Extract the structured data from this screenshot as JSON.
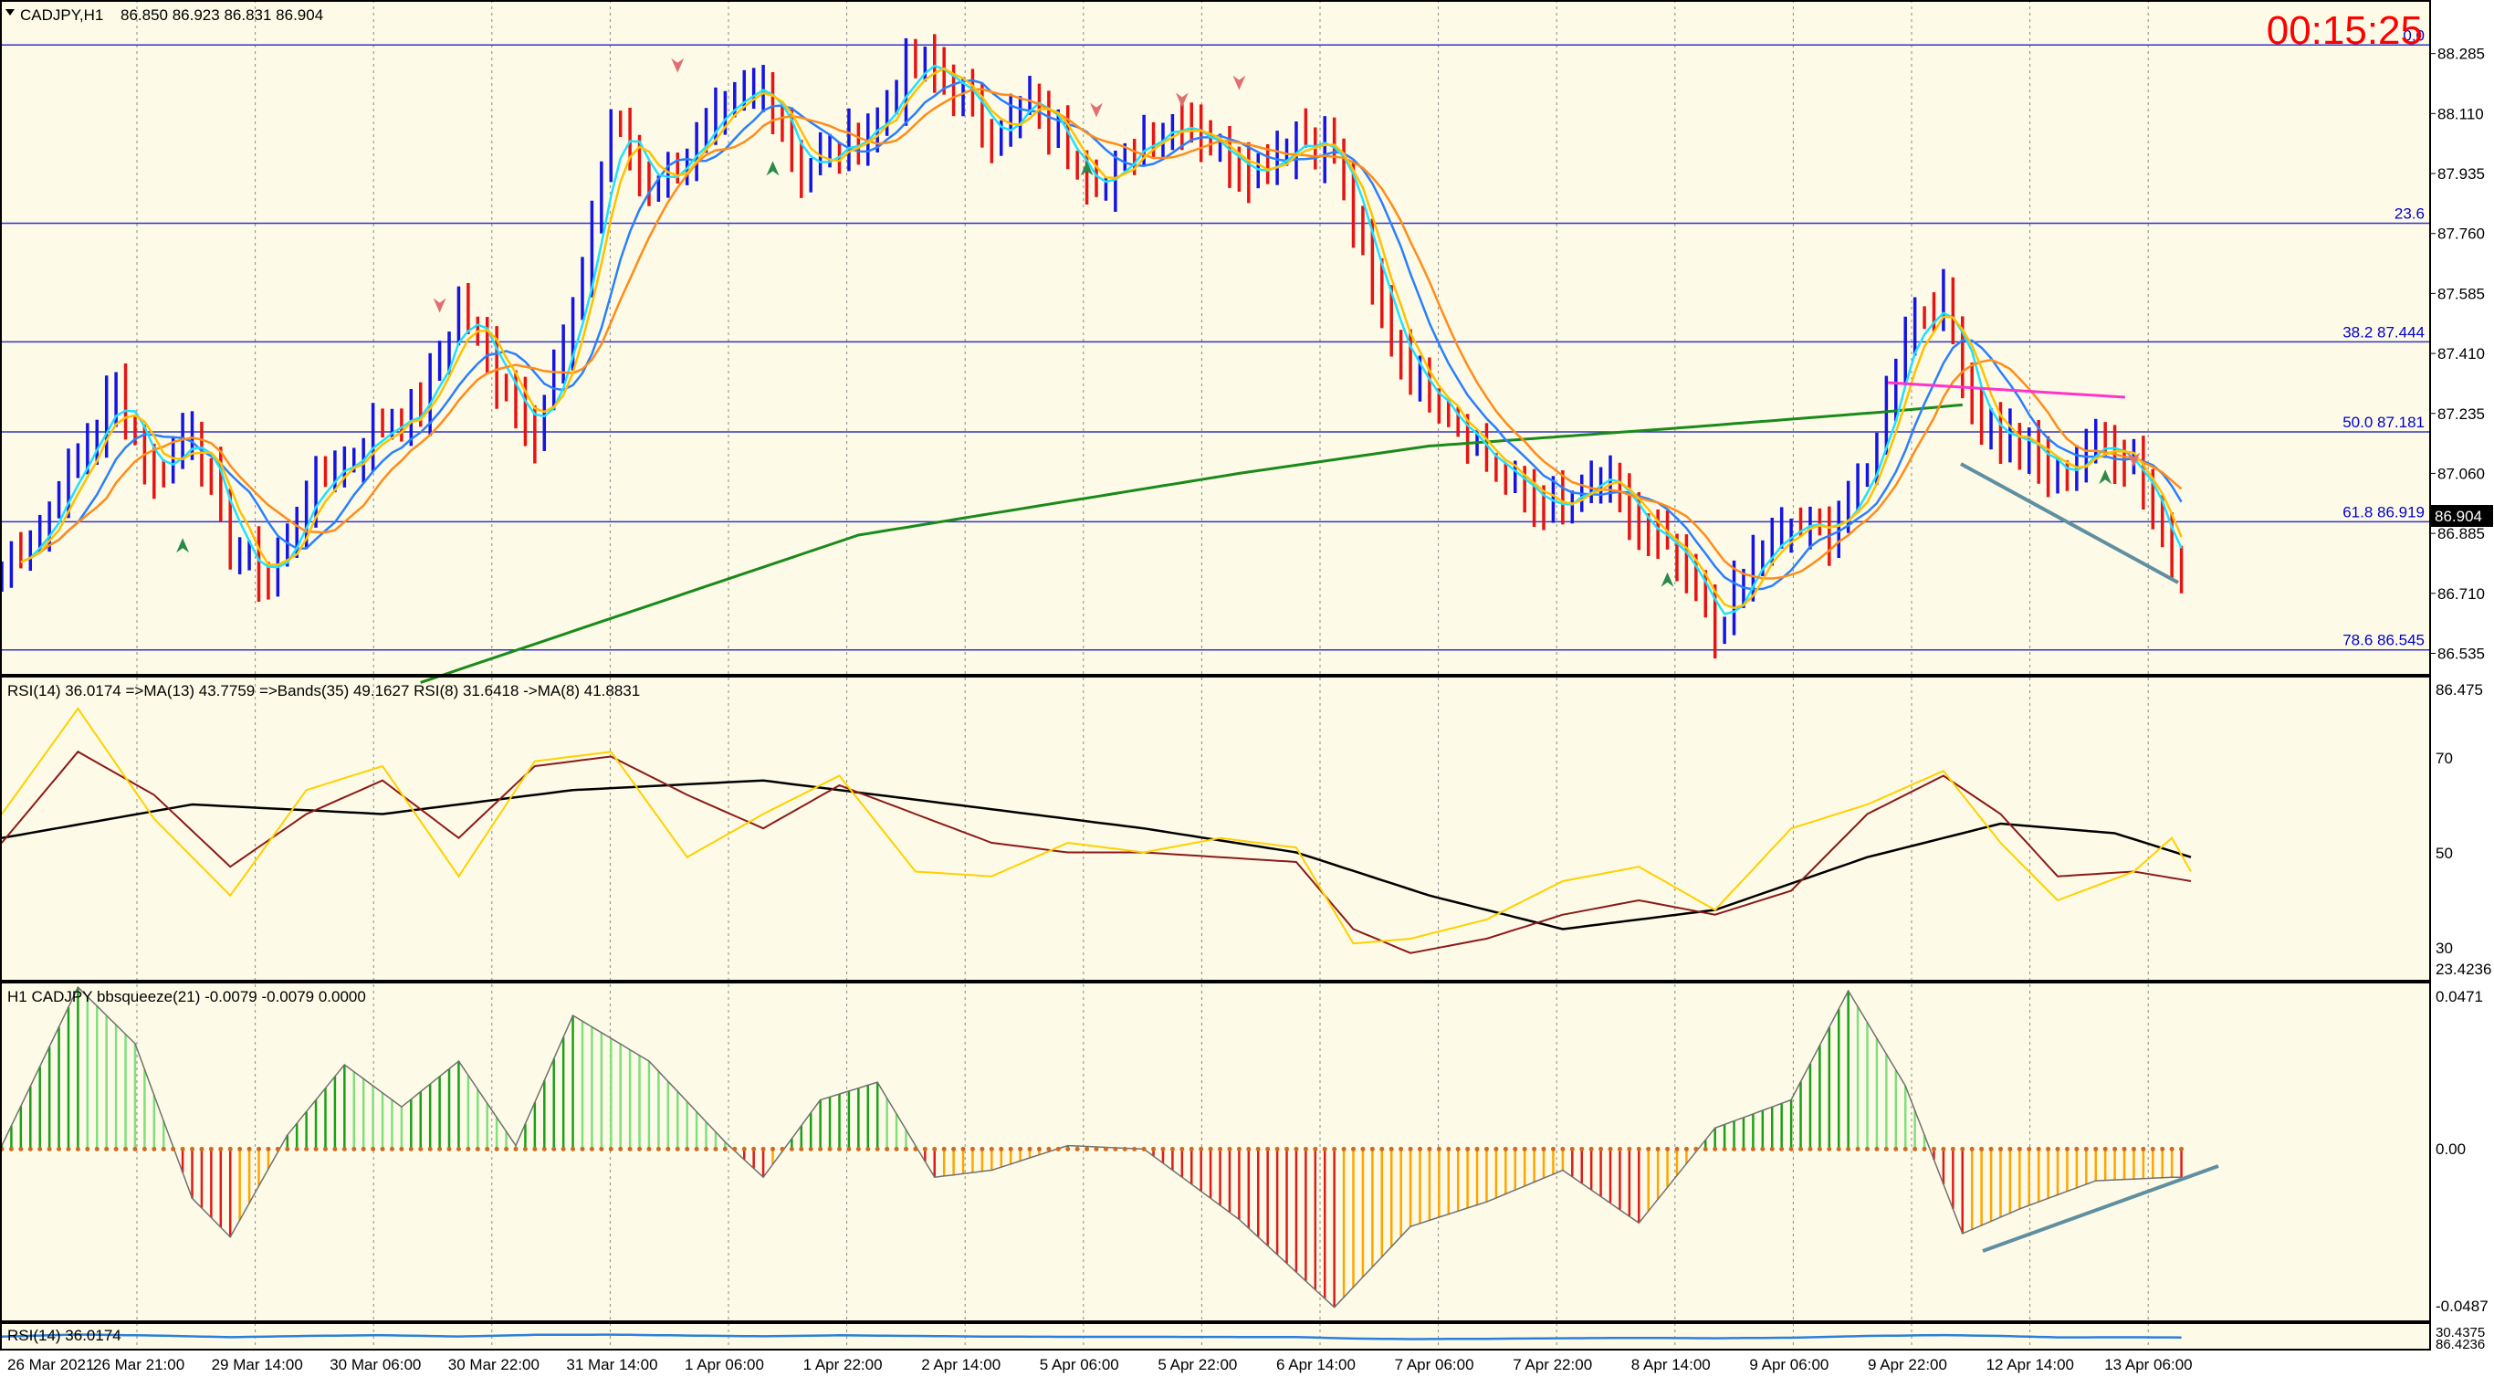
{
  "colors": {
    "background": "#fdfbe7",
    "bull_bar": "#1414e6",
    "bear_bar": "#e61414",
    "ma_fast": "#1ee0ff",
    "ma_slow": "#2a7fff",
    "ma_orange": "#ff8c1a",
    "ma_yellow": "#ffc000",
    "ma_long": "#1a8a1a",
    "pivot_line": "#ff33cc",
    "fib_line": "#3333cc",
    "trend_line": "#5f8fa0",
    "rsi_fast": "#ffd000",
    "rsi_slow": "#8b1a1a",
    "rsi_bands": "#000000",
    "squeeze_up": "#1aa01a",
    "squeeze_up_light": "#7fe07f",
    "squeeze_down": "#e01a1a",
    "squeeze_down_light": "#ffa500",
    "rsi_small": "#2a7fdd",
    "timer": "#ff0000"
  },
  "header": {
    "menu_icon": "triangle-down-icon",
    "symbol": "CADJPY,H1",
    "ohlc": "86.850 86.923 86.831 86.904"
  },
  "timer": "00:15:25",
  "price_axis": {
    "ticks": [
      "88.285",
      "88.110",
      "87.935",
      "87.760",
      "87.585",
      "87.410",
      "87.235",
      "87.060",
      "86.885",
      "86.710",
      "86.535"
    ],
    "current": "86.904"
  },
  "fib_levels": [
    {
      "label": "0.0",
      "price": 88.31
    },
    {
      "label": "23.6",
      "price": 87.79
    },
    {
      "label": "38.2  87.444",
      "price": 87.444
    },
    {
      "label": "50.0  87.181",
      "price": 87.181
    },
    {
      "label": "61.8  86.919",
      "price": 86.919
    },
    {
      "label": "78.6  86.545",
      "price": 86.545
    }
  ],
  "rsi_panel": {
    "header": "RSI(14) 36.0174  =>MA(13) 43.7759  =>Bands(35) 49.1627  RSI(8) 31.6418  ->MA(8) 41.8831",
    "axis_ticks": [
      "86.475",
      "70",
      "50",
      "30",
      "23.4236"
    ]
  },
  "squeeze_panel": {
    "header": "H1 CADJPY bbsqueeze(21) -0.0079 -0.0079 0.0000",
    "axis_ticks": [
      "0.0471",
      "0.00",
      "-0.0487"
    ]
  },
  "small_rsi_panel": {
    "header": "RSI(14) 36.0174",
    "axis_ticks": [
      "30.4375",
      "86.4236"
    ]
  },
  "time_axis": [
    "26 Mar 2021",
    "26 Mar 21:00",
    "29 Mar 14:00",
    "30 Mar 06:00",
    "30 Mar 22:00",
    "31 Mar 14:00",
    "1 Apr 06:00",
    "1 Apr 22:00",
    "2 Apr 14:00",
    "5 Apr 06:00",
    "5 Apr 22:00",
    "6 Apr 14:00",
    "7 Apr 06:00",
    "7 Apr 22:00",
    "8 Apr 14:00",
    "9 Apr 06:00",
    "9 Apr 22:00",
    "12 Apr 14:00",
    "13 Apr 06:00"
  ],
  "chart_data": {
    "type": "candlestick",
    "price_range": [
      86.475,
      88.42
    ],
    "price_series": [
      [
        0,
        86.78
      ],
      [
        4,
        86.9
      ],
      [
        8,
        87.1
      ],
      [
        12,
        87.3
      ],
      [
        16,
        87.05
      ],
      [
        20,
        87.2
      ],
      [
        24,
        86.85
      ],
      [
        28,
        86.75
      ],
      [
        32,
        87.0
      ],
      [
        36,
        87.1
      ],
      [
        40,
        87.2
      ],
      [
        44,
        87.25
      ],
      [
        48,
        87.55
      ],
      [
        52,
        87.35
      ],
      [
        56,
        87.2
      ],
      [
        60,
        87.5
      ],
      [
        64,
        88.1
      ],
      [
        68,
        87.9
      ],
      [
        72,
        88.0
      ],
      [
        76,
        88.1
      ],
      [
        80,
        88.2
      ],
      [
        84,
        87.95
      ],
      [
        88,
        88.0
      ],
      [
        92,
        88.1
      ],
      [
        96,
        88.25
      ],
      [
        100,
        88.2
      ],
      [
        104,
        88.05
      ],
      [
        108,
        88.15
      ],
      [
        112,
        88.0
      ],
      [
        116,
        87.9
      ],
      [
        120,
        88.05
      ],
      [
        124,
        88.1
      ],
      [
        128,
        88.0
      ],
      [
        132,
        87.95
      ],
      [
        136,
        88.05
      ],
      [
        140,
        88.0
      ],
      [
        144,
        87.6
      ],
      [
        148,
        87.35
      ],
      [
        152,
        87.25
      ],
      [
        156,
        87.1
      ],
      [
        160,
        87.0
      ],
      [
        164,
        86.95
      ],
      [
        168,
        87.05
      ],
      [
        172,
        86.9
      ],
      [
        176,
        86.8
      ],
      [
        180,
        86.6
      ],
      [
        184,
        86.8
      ],
      [
        188,
        86.9
      ],
      [
        192,
        86.9
      ],
      [
        196,
        87.05
      ],
      [
        200,
        87.5
      ],
      [
        204,
        87.55
      ],
      [
        208,
        87.2
      ],
      [
        212,
        87.15
      ],
      [
        216,
        87.05
      ],
      [
        220,
        87.15
      ],
      [
        224,
        87.1
      ],
      [
        228,
        86.8
      ]
    ],
    "bars_total": 230,
    "ma_long_series": [
      [
        44,
        86.45
      ],
      [
        90,
        86.88
      ],
      [
        130,
        87.06
      ],
      [
        150,
        87.14
      ],
      [
        175,
        87.19
      ],
      [
        198,
        87.24
      ],
      [
        206,
        87.26
      ]
    ],
    "rsi_range": [
      23.4236,
      86.475
    ],
    "rsi14_series": [
      [
        0,
        52
      ],
      [
        8,
        71
      ],
      [
        16,
        62
      ],
      [
        24,
        47
      ],
      [
        32,
        58
      ],
      [
        40,
        65
      ],
      [
        48,
        53
      ],
      [
        56,
        68
      ],
      [
        64,
        70
      ],
      [
        72,
        62
      ],
      [
        80,
        55
      ],
      [
        88,
        64
      ],
      [
        96,
        58
      ],
      [
        104,
        52
      ],
      [
        112,
        50
      ],
      [
        120,
        50
      ],
      [
        128,
        49
      ],
      [
        136,
        48
      ],
      [
        142,
        34
      ],
      [
        148,
        29
      ],
      [
        156,
        32
      ],
      [
        164,
        37
      ],
      [
        172,
        40
      ],
      [
        180,
        37
      ],
      [
        188,
        42
      ],
      [
        196,
        58
      ],
      [
        204,
        66
      ],
      [
        210,
        58
      ],
      [
        216,
        45
      ],
      [
        224,
        46
      ],
      [
        230,
        44
      ]
    ],
    "rsi8_series": [
      [
        0,
        58
      ],
      [
        8,
        80
      ],
      [
        16,
        57
      ],
      [
        24,
        41
      ],
      [
        32,
        63
      ],
      [
        40,
        68
      ],
      [
        48,
        45
      ],
      [
        56,
        69
      ],
      [
        64,
        71
      ],
      [
        72,
        49
      ],
      [
        80,
        58
      ],
      [
        88,
        66
      ],
      [
        96,
        46
      ],
      [
        104,
        45
      ],
      [
        112,
        52
      ],
      [
        120,
        50
      ],
      [
        128,
        53
      ],
      [
        136,
        51
      ],
      [
        142,
        31
      ],
      [
        148,
        32
      ],
      [
        156,
        36
      ],
      [
        164,
        44
      ],
      [
        172,
        47
      ],
      [
        180,
        38
      ],
      [
        188,
        55
      ],
      [
        196,
        60
      ],
      [
        204,
        67
      ],
      [
        210,
        52
      ],
      [
        216,
        40
      ],
      [
        224,
        46
      ],
      [
        228,
        53
      ],
      [
        230,
        46
      ]
    ],
    "rsi_bands_series": [
      [
        0,
        53
      ],
      [
        20,
        60
      ],
      [
        40,
        58
      ],
      [
        60,
        63
      ],
      [
        80,
        65
      ],
      [
        100,
        60
      ],
      [
        120,
        55
      ],
      [
        136,
        50
      ],
      [
        150,
        41
      ],
      [
        164,
        34
      ],
      [
        180,
        38
      ],
      [
        196,
        49
      ],
      [
        210,
        56
      ],
      [
        222,
        54
      ],
      [
        230,
        49
      ]
    ],
    "squeeze_range": [
      -0.0487,
      0.0471
    ],
    "squeeze_series": [
      [
        0,
        0.001
      ],
      [
        8,
        0.046
      ],
      [
        14,
        0.03
      ],
      [
        20,
        -0.014
      ],
      [
        24,
        -0.025
      ],
      [
        30,
        0.004
      ],
      [
        36,
        0.024
      ],
      [
        42,
        0.012
      ],
      [
        48,
        0.025
      ],
      [
        54,
        0.001
      ],
      [
        60,
        0.038
      ],
      [
        68,
        0.025
      ],
      [
        76,
        0.002
      ],
      [
        80,
        -0.008
      ],
      [
        86,
        0.014
      ],
      [
        92,
        0.019
      ],
      [
        98,
        -0.008
      ],
      [
        104,
        -0.006
      ],
      [
        112,
        0.001
      ],
      [
        120,
        0.0
      ],
      [
        130,
        -0.02
      ],
      [
        140,
        -0.045
      ],
      [
        148,
        -0.022
      ],
      [
        156,
        -0.015
      ],
      [
        164,
        -0.006
      ],
      [
        172,
        -0.021
      ],
      [
        180,
        0.006
      ],
      [
        188,
        0.014
      ],
      [
        194,
        0.045
      ],
      [
        200,
        0.018
      ],
      [
        206,
        -0.024
      ],
      [
        212,
        -0.017
      ],
      [
        220,
        -0.009
      ],
      [
        228,
        -0.008
      ]
    ]
  }
}
